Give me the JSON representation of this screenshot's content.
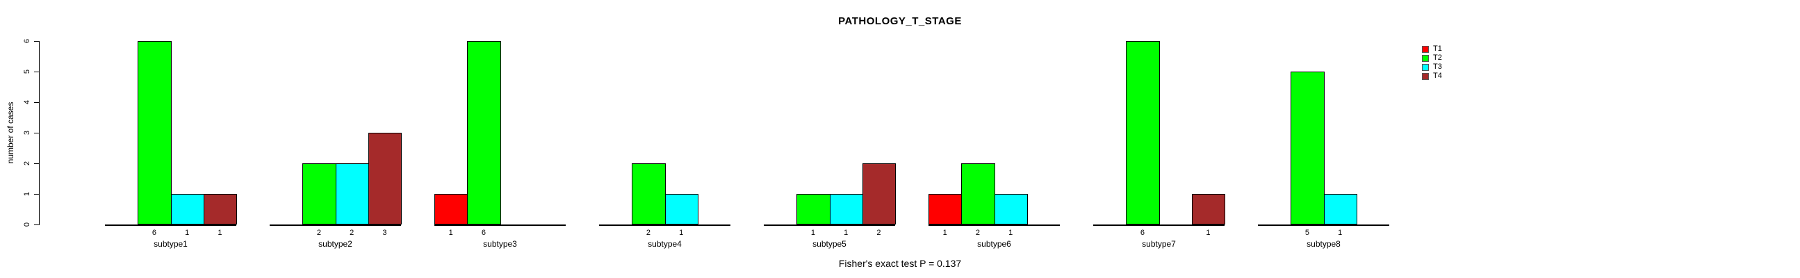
{
  "chart_data": {
    "type": "bar",
    "title": "PATHOLOGY_T_STAGE",
    "ylabel": "number of cases",
    "xlabel": "",
    "footer": "Fisher's exact test P = 0.137",
    "ylim": [
      0,
      6
    ],
    "yticks": [
      0,
      1,
      2,
      3,
      4,
      5,
      6
    ],
    "grid": false,
    "legend_position": "top-right",
    "bar_value_labels_visible": true,
    "categories": [
      "subtype1",
      "subtype2",
      "subtype3",
      "subtype4",
      "subtype5",
      "subtype6",
      "subtype7",
      "subtype8"
    ],
    "series": [
      {
        "name": "T1",
        "color": "#FF0000",
        "values": [
          0,
          0,
          1,
          0,
          0,
          1,
          0,
          0
        ]
      },
      {
        "name": "T2",
        "color": "#00FF00",
        "values": [
          6,
          2,
          6,
          2,
          1,
          2,
          6,
          5
        ]
      },
      {
        "name": "T3",
        "color": "#00FFFF",
        "values": [
          1,
          2,
          0,
          1,
          1,
          1,
          0,
          1
        ]
      },
      {
        "name": "T4",
        "color": "#A52A2A",
        "values": [
          1,
          3,
          0,
          0,
          2,
          0,
          1,
          0
        ]
      }
    ],
    "axis_color": "#000000",
    "background_color": "#FFFFFF"
  }
}
